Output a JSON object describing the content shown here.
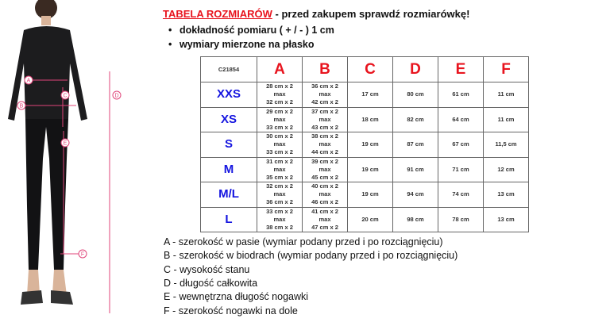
{
  "header": {
    "title": "TABELA ROZMIARÓW",
    "subtitle": " - przed zakupem sprawdź rozmiarówkę!"
  },
  "bullets": [
    "dokładność pomiaru ( + / - ) 1 cm",
    "wymiary mierzone na płasko"
  ],
  "table": {
    "code": "C21854",
    "columns": [
      "A",
      "B",
      "C",
      "D",
      "E",
      "F"
    ],
    "rows": [
      {
        "size": "XXS",
        "a": [
          "28 cm x 2",
          "max",
          "32 cm x 2"
        ],
        "b": [
          "36 cm x 2",
          "max",
          "42 cm x 2"
        ],
        "c": "17 cm",
        "d": "80 cm",
        "e": "61 cm",
        "f": "11 cm"
      },
      {
        "size": "XS",
        "a": [
          "29 cm x 2",
          "max",
          "33 cm x 2"
        ],
        "b": [
          "37 cm x 2",
          "max",
          "43 cm x 2"
        ],
        "c": "18 cm",
        "d": "82 cm",
        "e": "64 cm",
        "f": "11 cm"
      },
      {
        "size": "S",
        "a": [
          "30 cm x 2",
          "max",
          "33 cm x 2"
        ],
        "b": [
          "38 cm x 2",
          "max",
          "44 cm x 2"
        ],
        "c": "19 cm",
        "d": "87 cm",
        "e": "67 cm",
        "f": "11,5 cm"
      },
      {
        "size": "M",
        "a": [
          "31 cm x 2",
          "max",
          "35 cm x 2"
        ],
        "b": [
          "39 cm x 2",
          "max",
          "45 cm x 2"
        ],
        "c": "19 cm",
        "d": "91 cm",
        "e": "71 cm",
        "f": "12 cm"
      },
      {
        "size": "M/L",
        "a": [
          "32 cm x 2",
          "max",
          "36 cm x 2"
        ],
        "b": [
          "40 cm x 2",
          "max",
          "46 cm x 2"
        ],
        "c": "19 cm",
        "d": "94 cm",
        "e": "74 cm",
        "f": "13 cm"
      },
      {
        "size": "L",
        "a": [
          "33 cm x 2",
          "max",
          "38 cm x 2"
        ],
        "b": [
          "41 cm x 2",
          "max",
          "47 cm x 2"
        ],
        "c": "20 cm",
        "d": "98 cm",
        "e": "78 cm",
        "f": "13 cm"
      }
    ]
  },
  "legend": [
    "A - szerokość w pasie (wymiar podany przed i po rozciągnięciu)",
    "B - szerokość w biodrach (wymiar podany przed i po rozciągnięciu)",
    "C - wysokość stanu",
    "D - długość całkowita",
    "E - wewnętrzna długość nogawki",
    "F - szerokość nogawki na dole"
  ],
  "figure_labels": [
    "A",
    "B",
    "C",
    "D",
    "E",
    "F"
  ],
  "colors": {
    "accent": "#e8141e",
    "size": "#1414e0",
    "marker": "#e0457a"
  }
}
